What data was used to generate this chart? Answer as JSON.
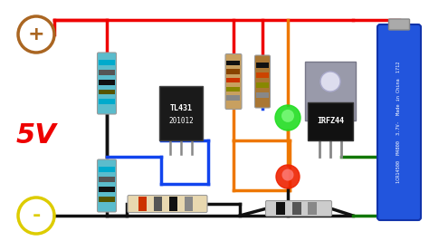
{
  "bg_color": "#ffffff",
  "wire_red": "#ee0000",
  "wire_black": "#111111",
  "wire_blue": "#1144ee",
  "wire_orange": "#ee7700",
  "wire_green": "#117700",
  "wire_yellow": "#ddcc00",
  "text_5v": "5V",
  "text_5v_color": "#ee0000",
  "ic_label1": "TL431",
  "ic_label2": "201012",
  "mosfet_label": "IRFZ44",
  "battery_text": [
    "1CR14500",
    "M4800",
    "3.7V -",
    "Made in",
    "China",
    "1712"
  ],
  "plus_circle_color": "#aa6622",
  "minus_circle_color": "#ddcc00",
  "plus_symbol": "+",
  "minus_symbol": "-"
}
